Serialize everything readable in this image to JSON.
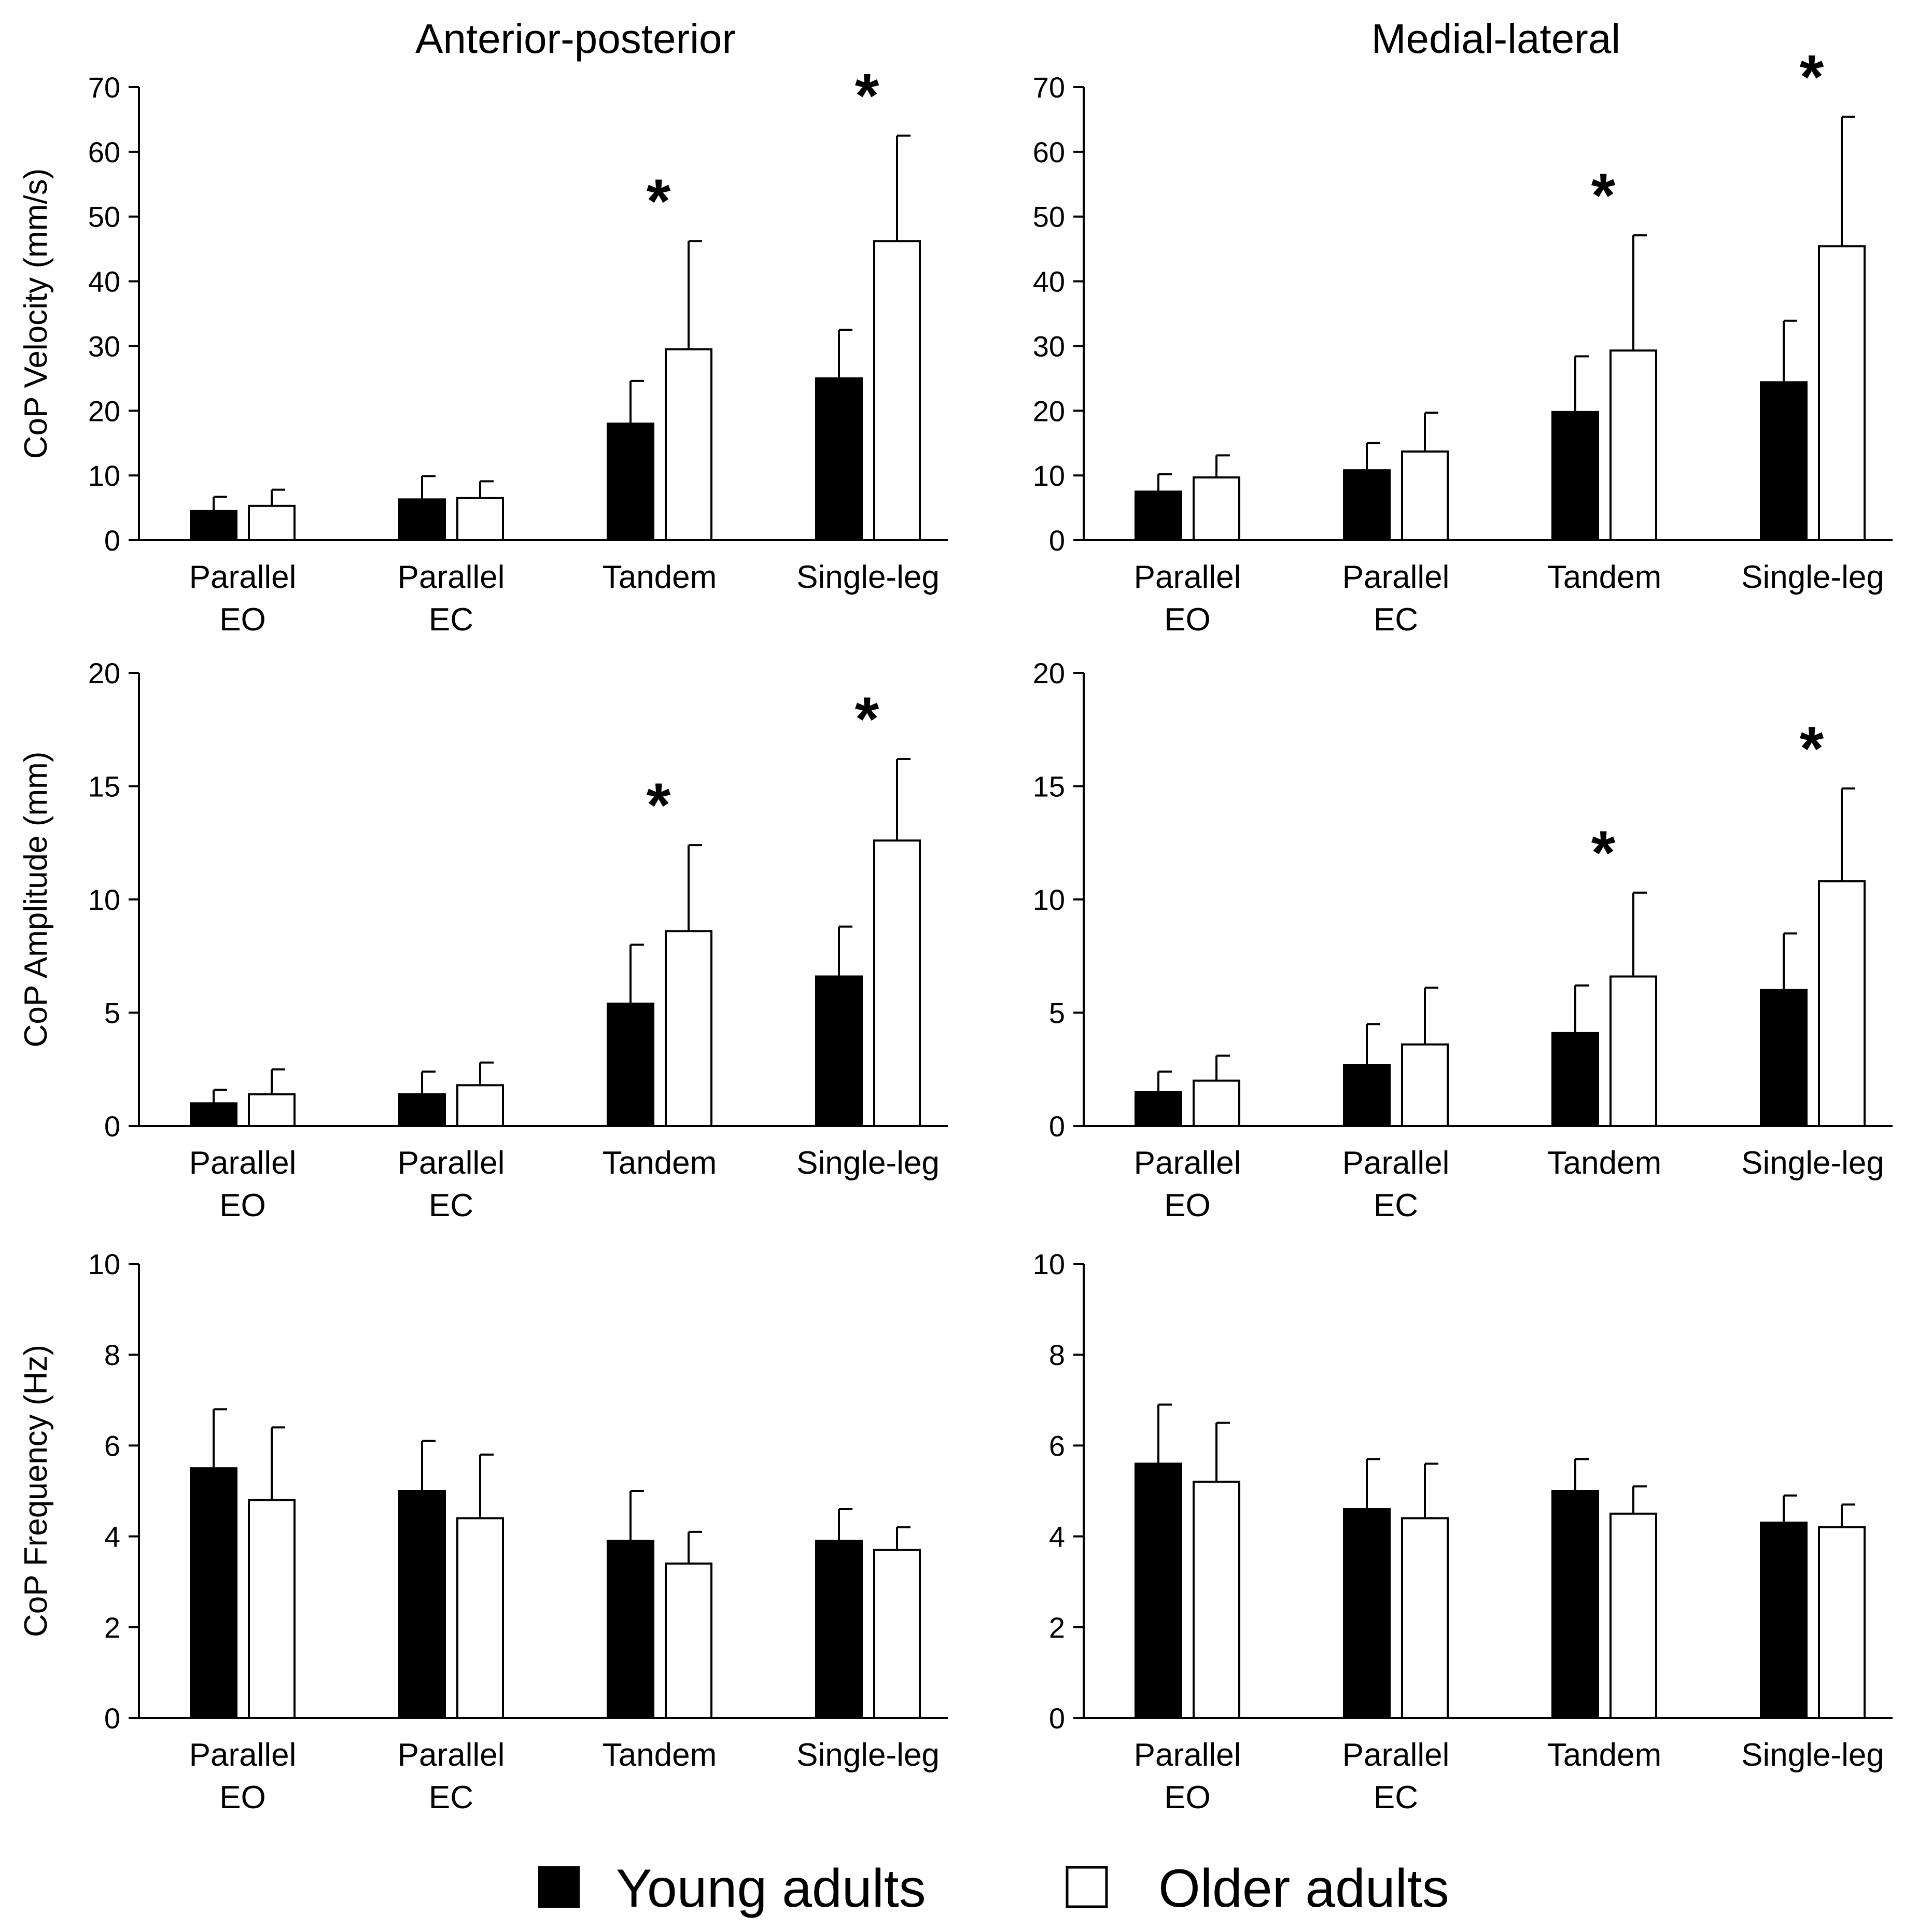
{
  "column_titles": [
    "Anterior-posterior",
    "Medial-lateral"
  ],
  "legend": {
    "young": {
      "label": "Young adults",
      "color": "#000000"
    },
    "older": {
      "label": "Older adults",
      "color": "#ffffff"
    }
  },
  "chart_data": [
    {
      "id": "velocity-ap",
      "type": "bar",
      "row": 0,
      "col": 0,
      "title": "Anterior-posterior",
      "ylabel": "CoP Velocity (mm/s)",
      "ylim": [
        0,
        70
      ],
      "yticks": [
        "0",
        "10",
        "20",
        "30",
        "40",
        "50",
        "60",
        "70"
      ],
      "categories": [
        [
          "Parallel",
          "EO"
        ],
        [
          "Parallel",
          "EC"
        ],
        [
          "Tandem"
        ],
        [
          "Single-leg"
        ]
      ],
      "series": [
        {
          "name": "Young adults",
          "values": [
            4.5,
            6.3,
            18,
            25
          ],
          "errors": [
            2.2,
            3.6,
            6.6,
            7.5
          ]
        },
        {
          "name": "Older adults",
          "values": [
            5.3,
            6.5,
            29.5,
            46.2
          ],
          "errors": [
            2.5,
            2.6,
            16.7,
            16.3
          ]
        }
      ],
      "significance": [
        "",
        "",
        "*",
        "*"
      ]
    },
    {
      "id": "velocity-ml",
      "type": "bar",
      "row": 0,
      "col": 1,
      "title": "Medial-lateral",
      "ylabel": "",
      "ylim": [
        0,
        70
      ],
      "yticks": [
        "0",
        "10",
        "20",
        "30",
        "40",
        "50",
        "60",
        "70"
      ],
      "categories": [
        [
          "Parallel",
          "EO"
        ],
        [
          "Parallel",
          "EC"
        ],
        [
          "Tandem"
        ],
        [
          "Single-leg"
        ]
      ],
      "series": [
        {
          "name": "Young adults",
          "values": [
            7.5,
            10.8,
            19.8,
            24.4
          ],
          "errors": [
            2.7,
            4.2,
            8.6,
            9.5
          ]
        },
        {
          "name": "Older adults",
          "values": [
            9.7,
            13.7,
            29.3,
            45.4
          ],
          "errors": [
            3.4,
            6.0,
            17.8,
            20.0
          ]
        }
      ],
      "significance": [
        "",
        "",
        "*",
        "*"
      ]
    },
    {
      "id": "amplitude-ap",
      "type": "bar",
      "row": 1,
      "col": 0,
      "title": "",
      "ylabel": "CoP Amplitude (mm)",
      "ylim": [
        0,
        20
      ],
      "yticks": [
        "0",
        "5",
        "10",
        "15",
        "20"
      ],
      "categories": [
        [
          "Parallel",
          "EO"
        ],
        [
          "Parallel",
          "EC"
        ],
        [
          "Tandem"
        ],
        [
          "Single-leg"
        ]
      ],
      "series": [
        {
          "name": "Young adults",
          "values": [
            1.0,
            1.4,
            5.4,
            6.6
          ],
          "errors": [
            0.6,
            1.0,
            2.6,
            2.2
          ]
        },
        {
          "name": "Older adults",
          "values": [
            1.4,
            1.8,
            8.6,
            12.6
          ],
          "errors": [
            1.1,
            1.0,
            3.8,
            3.6
          ]
        }
      ],
      "significance": [
        "",
        "",
        "*",
        "*"
      ]
    },
    {
      "id": "amplitude-ml",
      "type": "bar",
      "row": 1,
      "col": 1,
      "title": "",
      "ylabel": "",
      "ylim": [
        0,
        20
      ],
      "yticks": [
        "0",
        "5",
        "10",
        "15",
        "20"
      ],
      "categories": [
        [
          "Parallel",
          "EO"
        ],
        [
          "Parallel",
          "EC"
        ],
        [
          "Tandem"
        ],
        [
          "Single-leg"
        ]
      ],
      "series": [
        {
          "name": "Young adults",
          "values": [
            1.5,
            2.7,
            4.1,
            6.0
          ],
          "errors": [
            0.9,
            1.8,
            2.1,
            2.5
          ]
        },
        {
          "name": "Older adults",
          "values": [
            2.0,
            3.6,
            6.6,
            10.8
          ],
          "errors": [
            1.1,
            2.5,
            3.7,
            4.1
          ]
        }
      ],
      "significance": [
        "",
        "",
        "*",
        "*"
      ]
    },
    {
      "id": "frequency-ap",
      "type": "bar",
      "row": 2,
      "col": 0,
      "title": "",
      "ylabel": "CoP Frequency (Hz)",
      "ylim": [
        0,
        10
      ],
      "yticks": [
        "0",
        "2",
        "4",
        "6",
        "8",
        "10"
      ],
      "categories": [
        [
          "Parallel",
          "EO"
        ],
        [
          "Parallel",
          "EC"
        ],
        [
          "Tandem"
        ],
        [
          "Single-leg"
        ]
      ],
      "series": [
        {
          "name": "Young adults",
          "values": [
            5.5,
            5.0,
            3.9,
            3.9
          ],
          "errors": [
            1.3,
            1.1,
            1.1,
            0.7
          ]
        },
        {
          "name": "Older adults",
          "values": [
            4.8,
            4.4,
            3.4,
            3.7
          ],
          "errors": [
            1.6,
            1.4,
            0.7,
            0.5
          ]
        }
      ],
      "significance": [
        "",
        "",
        "",
        ""
      ]
    },
    {
      "id": "frequency-ml",
      "type": "bar",
      "row": 2,
      "col": 1,
      "title": "",
      "ylabel": "",
      "ylim": [
        0,
        10
      ],
      "yticks": [
        "0",
        "2",
        "4",
        "6",
        "8",
        "10"
      ],
      "categories": [
        [
          "Parallel",
          "EO"
        ],
        [
          "Parallel",
          "EC"
        ],
        [
          "Tandem"
        ],
        [
          "Single-leg"
        ]
      ],
      "series": [
        {
          "name": "Young adults",
          "values": [
            5.6,
            4.6,
            5.0,
            4.3
          ],
          "errors": [
            1.3,
            1.1,
            0.7,
            0.6
          ]
        },
        {
          "name": "Older adults",
          "values": [
            5.2,
            4.4,
            4.5,
            4.2
          ],
          "errors": [
            1.3,
            1.2,
            0.6,
            0.5
          ]
        }
      ],
      "significance": [
        "",
        "",
        "",
        ""
      ]
    }
  ]
}
